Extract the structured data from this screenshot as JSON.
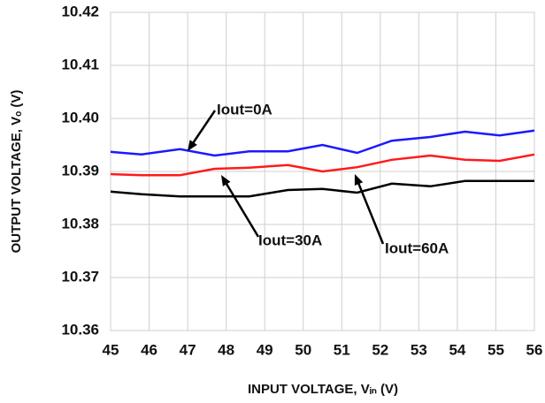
{
  "chart_data": {
    "type": "line",
    "xlabel": "INPUT VOLTAGE, Vᵢₙ (V)",
    "ylabel": "OUTPUT VOLTAGE, Vₒ (V)",
    "x": [
      45,
      45.8,
      46.8,
      47.7,
      48.6,
      49.6,
      50.5,
      51.4,
      52.3,
      53.3,
      54.2,
      55.1,
      56
    ],
    "series": [
      {
        "name": "Iout=0A",
        "color": "#1a1aff",
        "values": [
          10.3937,
          10.3932,
          10.3942,
          10.393,
          10.3938,
          10.3938,
          10.395,
          10.3935,
          10.3958,
          10.3965,
          10.3975,
          10.3968,
          10.3977
        ]
      },
      {
        "name": "Iout=30A",
        "color": "#ff1a1a",
        "values": [
          10.3895,
          10.3893,
          10.3893,
          10.3905,
          10.3907,
          10.3912,
          10.39,
          10.3908,
          10.3922,
          10.393,
          10.3922,
          10.392,
          10.3932
        ]
      },
      {
        "name": "Iout=60A",
        "color": "#000000",
        "values": [
          10.3862,
          10.3857,
          10.3853,
          10.3853,
          10.3853,
          10.3865,
          10.3867,
          10.386,
          10.3877,
          10.3872,
          10.3882,
          10.3882,
          10.3882
        ]
      }
    ],
    "xlim": [
      45,
      56
    ],
    "xticks": [
      45,
      46,
      47,
      48,
      49,
      50,
      51,
      52,
      53,
      54,
      55,
      56
    ],
    "ylim": [
      10.36,
      10.42
    ],
    "yticks": [
      10.36,
      10.37,
      10.38,
      10.39,
      {
        "value": 10.4,
        "label": "10.40"
      },
      10.41,
      10.42
    ],
    "grid": true
  }
}
